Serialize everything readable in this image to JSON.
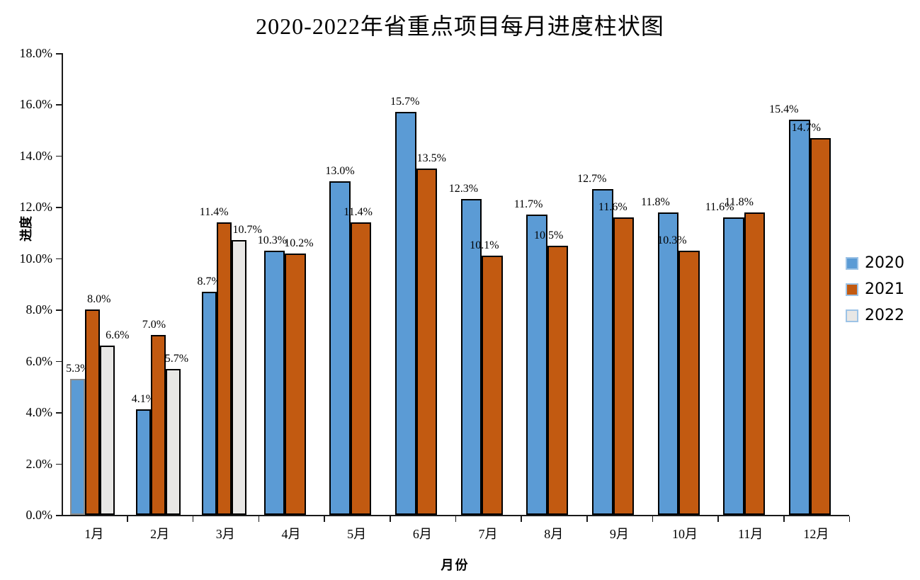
{
  "chart_data": {
    "type": "bar",
    "title": "2020-2022年省重点项目每月进度柱状图",
    "xlabel": "月份",
    "ylabel": "进度",
    "categories": [
      "1月",
      "2月",
      "3月",
      "4月",
      "5月",
      "6月",
      "7月",
      "8月",
      "9月",
      "10月",
      "11月",
      "12月"
    ],
    "series": [
      {
        "name": "2020",
        "color": "#5B9BD5",
        "values": [
          5.3,
          4.1,
          8.7,
          10.3,
          13.0,
          15.7,
          12.3,
          11.7,
          12.7,
          11.8,
          11.6,
          15.4
        ],
        "labels": [
          "5.3%",
          "4.1%",
          "8.7%",
          "10.3%",
          "13.0%",
          "15.7%",
          "12.3%",
          "11.7%",
          "12.7%",
          "11.8%",
          "11.6%",
          "15.4%"
        ]
      },
      {
        "name": "2021",
        "color": "#C25A11",
        "values": [
          8.0,
          7.0,
          11.4,
          10.2,
          11.4,
          13.5,
          10.1,
          10.5,
          11.6,
          10.3,
          11.8,
          14.7
        ],
        "labels": [
          "8.0%",
          "7.0%",
          "11.4%",
          "10.2%",
          "11.4%",
          "13.5%",
          "10.1%",
          "10.5%",
          "11.6%",
          "10.3%",
          "11.8%",
          "14.7%"
        ]
      },
      {
        "name": "2022",
        "color": "#E8E7E5",
        "values": [
          6.6,
          5.7,
          10.7,
          null,
          null,
          null,
          null,
          null,
          null,
          null,
          null,
          null
        ],
        "labels": [
          "6.6%",
          "5.7%",
          "10.7%",
          null,
          null,
          null,
          null,
          null,
          null,
          null,
          null,
          null
        ]
      }
    ],
    "y_ticks": [
      "0.0%",
      "2.0%",
      "4.0%",
      "6.0%",
      "8.0%",
      "10.0%",
      "12.0%",
      "14.0%",
      "16.0%",
      "18.0%"
    ],
    "ylim": [
      0,
      18
    ],
    "grid": false,
    "legend_position": "right",
    "bar_border_color": "#000000",
    "axis_color": "#1a1a1a"
  }
}
